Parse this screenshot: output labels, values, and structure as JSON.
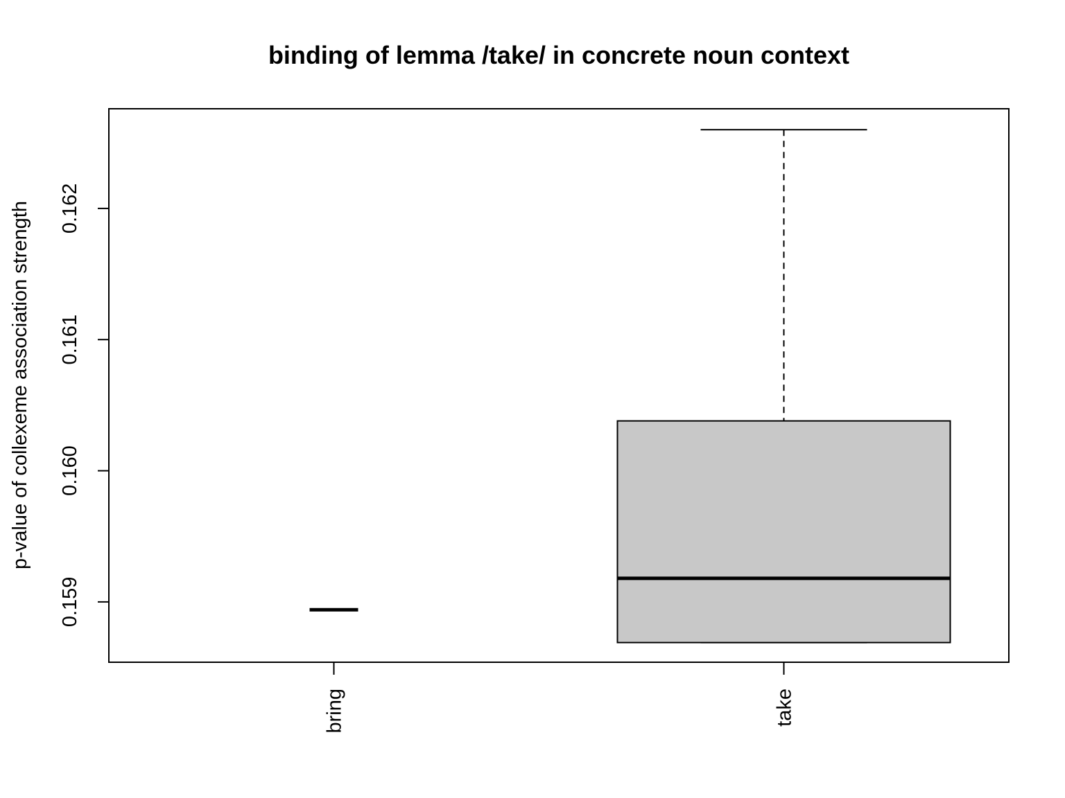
{
  "chart_data": {
    "type": "boxplot",
    "title": "binding of lemma /take/ in concrete noun context",
    "xlabel": "",
    "ylabel": "p-value of collexeme association strength",
    "categories": [
      "bring",
      "take"
    ],
    "boxes": [
      {
        "name": "bring",
        "whisker_low": 0.15894,
        "q1": 0.15894,
        "median": 0.15894,
        "q3": 0.15894,
        "whisker_high": 0.15894
      },
      {
        "name": "take",
        "whisker_low": 0.15869,
        "q1": 0.15869,
        "median": 0.15918,
        "q3": 0.16038,
        "whisker_high": 0.1626
      }
    ],
    "yticks": [
      "0.159",
      "0.160",
      "0.161",
      "0.162"
    ],
    "ylim": [
      0.15854,
      0.16276
    ],
    "grid": false,
    "box_fill": "#c8c8c8"
  }
}
